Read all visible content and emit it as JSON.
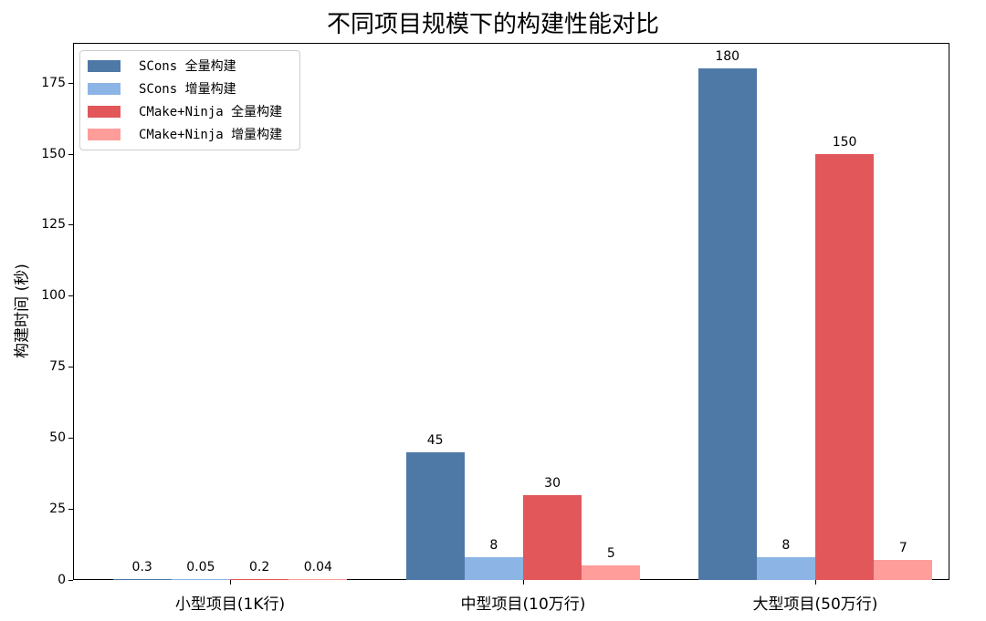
{
  "chart_data": {
    "type": "bar",
    "title": "不同项目规模下的构建性能对比",
    "xlabel": "",
    "ylabel": "构建时间 (秒)",
    "categories": [
      "小型项目(1K行)",
      "中型项目(10万行)",
      "大型项目(50万行)"
    ],
    "series": [
      {
        "name": "SCons 全量构建",
        "color": "#4e79a7",
        "values": [
          0.3,
          45,
          180
        ],
        "labels": [
          "0.3",
          "45",
          "180"
        ]
      },
      {
        "name": "SCons 增量构建",
        "color": "#8cb4e4",
        "values": [
          0.05,
          8,
          8
        ],
        "labels": [
          "0.05",
          "8",
          "8"
        ]
      },
      {
        "name": "CMake+Ninja 全量构建",
        "color": "#e1575a",
        "values": [
          0.2,
          30,
          150
        ],
        "labels": [
          "0.2",
          "30",
          "150"
        ]
      },
      {
        "name": "CMake+Ninja 增量构建",
        "color": "#ff9d9a",
        "values": [
          0.04,
          5,
          7
        ],
        "labels": [
          "0.04",
          "5",
          "7"
        ]
      }
    ],
    "ylim": [
      0,
      189
    ],
    "yticks": [
      0,
      25,
      50,
      75,
      100,
      125,
      150,
      175
    ],
    "grid": false,
    "legend_position": "upper left"
  }
}
